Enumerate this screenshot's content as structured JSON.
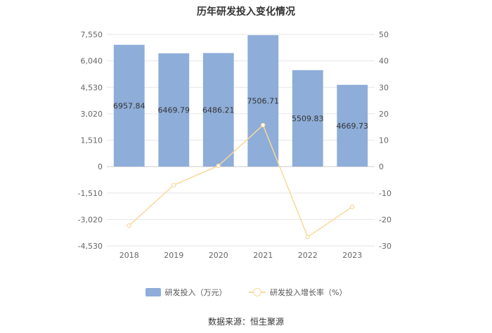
{
  "chart_data": {
    "type": "bar",
    "title": "历年研发投入变化情况",
    "categories": [
      "2018",
      "2019",
      "2020",
      "2021",
      "2022",
      "2023"
    ],
    "series": [
      {
        "name": "研发投入（万元）",
        "type": "bar",
        "axis": "left",
        "values": [
          6957.84,
          6469.79,
          6486.21,
          7506.71,
          5509.83,
          4669.73
        ],
        "labels": [
          "6957.84",
          "6469.79",
          "6486.21",
          "7506.71",
          "5509.83",
          "4669.73"
        ]
      },
      {
        "name": "研发投入增长率（%）",
        "type": "line",
        "axis": "right",
        "values": [
          -22.3,
          -7.0,
          0.3,
          15.7,
          -26.6,
          -15.2
        ]
      }
    ],
    "y_left": {
      "min": -4530,
      "max": 7550,
      "ticks": [
        "7,550",
        "6,040",
        "4,530",
        "3,020",
        "1,510",
        "0",
        "-1,510",
        "-3,020",
        "-4,530"
      ]
    },
    "y_right": {
      "min": -30,
      "max": 50,
      "ticks": [
        "50",
        "40",
        "30",
        "20",
        "10",
        "0",
        "-10",
        "-20",
        "-30"
      ]
    },
    "legend_position": "bottom",
    "grid": true,
    "colors": {
      "bar": "#8eadd8",
      "line": "#f8d89a",
      "grid": "#e6e6e6",
      "zero": "#cccccc"
    }
  },
  "legend": {
    "bar_label": "研发投入（万元）",
    "line_label": "研发投入增长率（%）"
  },
  "source": "数据来源：恒生聚源"
}
